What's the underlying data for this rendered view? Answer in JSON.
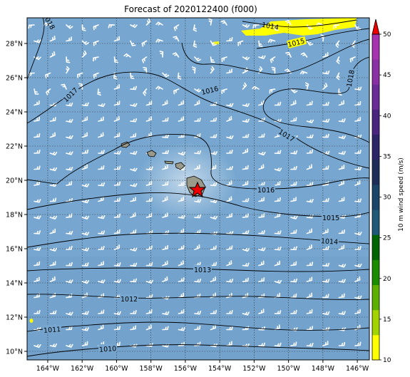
{
  "title": "Forecast of 2020122400 (f000)",
  "map": {
    "lat_labels": [
      "28°N",
      "26°N",
      "24°N",
      "22°N",
      "20°N",
      "18°N",
      "16°N",
      "14°N",
      "12°N",
      "10°N"
    ],
    "lon_labels": [
      "164°W",
      "162°W",
      "160°W",
      "158°W",
      "156°W",
      "154°W",
      "152°W",
      "150°W",
      "148°W",
      "146°W"
    ],
    "lat_range": [
      9.5,
      29.5
    ],
    "lon_range": [
      -165.2,
      -145.3
    ],
    "ocean_color": "#77a7d0",
    "land_color": "#9a9a8a",
    "storm_marker": {
      "type": "red-star",
      "lon": -155.3,
      "lat": 19.45
    },
    "isobars": [
      {
        "label": "1010"
      },
      {
        "label": "1011"
      },
      {
        "label": "1012"
      },
      {
        "label": "1013"
      },
      {
        "label": "1014"
      },
      {
        "label": "1015"
      },
      {
        "label": "1016"
      },
      {
        "label": "1017"
      },
      {
        "label": "1018"
      }
    ]
  },
  "colorbar": {
    "label": "10 m wind speed (m/s)",
    "ticks": [
      "10",
      "15",
      "20",
      "25",
      "30",
      "35",
      "40",
      "45",
      "50"
    ],
    "colors": [
      "#ffff00",
      "#a4d400",
      "#5cb000",
      "#1a8c00",
      "#006400",
      "#1e5a78",
      "#1a4468",
      "#1e2d57",
      "#2b2466",
      "#4a2580",
      "#6a2c96",
      "#8a2fa5",
      "#a632b0"
    ],
    "extend_color": "#ee0000"
  }
}
